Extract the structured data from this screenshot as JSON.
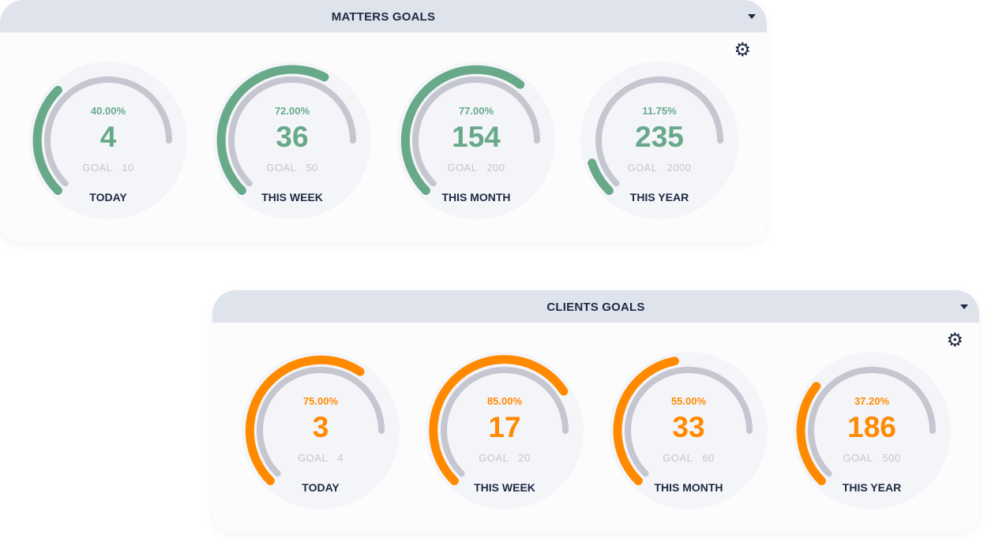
{
  "panels": [
    {
      "title": "MATTERS GOALS",
      "color": "#68a98a",
      "goal_label": "GOAL",
      "gauges": [
        {
          "percent_text": "40.00%",
          "percent": 40,
          "value": "4",
          "goal": "10",
          "label": "TODAY"
        },
        {
          "percent_text": "72.00%",
          "percent": 72,
          "value": "36",
          "goal": "50",
          "label": "THIS WEEK"
        },
        {
          "percent_text": "77.00%",
          "percent": 77,
          "value": "154",
          "goal": "200",
          "label": "THIS MONTH"
        },
        {
          "percent_text": "11.75%",
          "percent": 11.75,
          "value": "235",
          "goal": "2000",
          "label": "THIS YEAR"
        }
      ]
    },
    {
      "title": "CLIENTS GOALS",
      "color": "#ff8a00",
      "goal_label": "GOAL",
      "gauges": [
        {
          "percent_text": "75.00%",
          "percent": 75,
          "value": "3",
          "goal": "4",
          "label": "TODAY"
        },
        {
          "percent_text": "85.00%",
          "percent": 85,
          "value": "17",
          "goal": "20",
          "label": "THIS WEEK"
        },
        {
          "percent_text": "55.00%",
          "percent": 55,
          "value": "33",
          "goal": "60",
          "label": "THIS MONTH"
        },
        {
          "percent_text": "37.20%",
          "percent": 37.2,
          "value": "186",
          "goal": "500",
          "label": "THIS YEAR"
        }
      ]
    }
  ],
  "icons": {
    "settings": "gear-icon",
    "collapse": "caret-down-icon"
  },
  "track_color": "#c5c6d0"
}
